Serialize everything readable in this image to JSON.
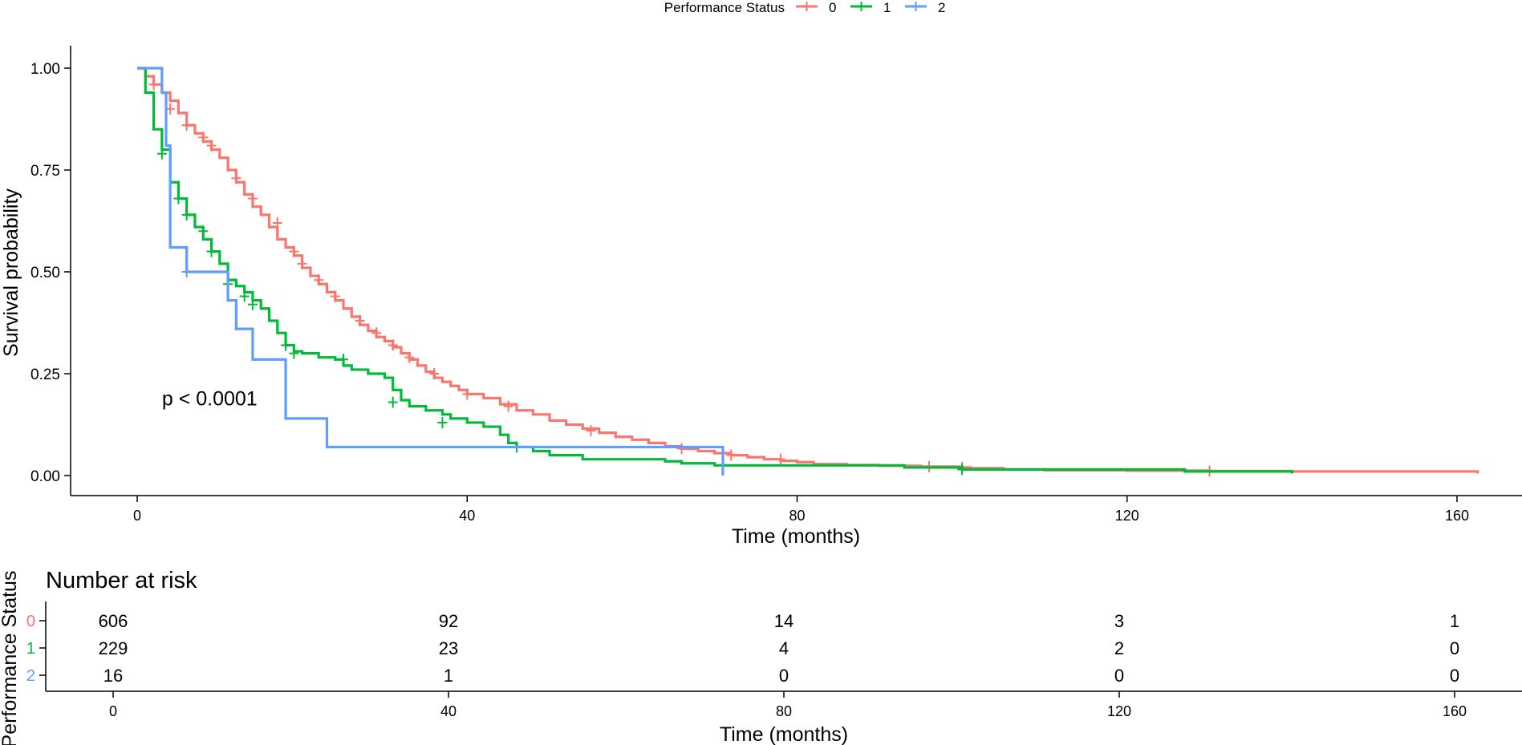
{
  "chart_data": {
    "type": "line",
    "subtype": "kaplan-meier",
    "legend": {
      "title": "Performance Status",
      "position": "top",
      "entries": [
        "0",
        "1",
        "2"
      ]
    },
    "xlabel": "Time (months)",
    "ylabel": "Survival probability",
    "xlim": [
      -8,
      168
    ],
    "ylim": [
      -0.05,
      1.05
    ],
    "xticks": [
      0,
      40,
      80,
      120,
      160
    ],
    "yticks": [
      0.0,
      0.25,
      0.5,
      0.75,
      1.0
    ],
    "ytick_labels": [
      "0.00",
      "0.25",
      "0.50",
      "0.75",
      "1.00"
    ],
    "grid": false,
    "annotation": "p < 0.0001",
    "annotation_at": [
      3,
      0.19
    ],
    "series": [
      {
        "name": "0",
        "color": "#F8766D",
        "steps": [
          [
            0,
            1.0
          ],
          [
            1,
            0.98
          ],
          [
            2,
            0.96
          ],
          [
            3,
            0.94
          ],
          [
            4,
            0.92
          ],
          [
            5,
            0.89
          ],
          [
            6,
            0.86
          ],
          [
            7,
            0.84
          ],
          [
            8,
            0.82
          ],
          [
            9,
            0.8
          ],
          [
            10,
            0.78
          ],
          [
            11,
            0.75
          ],
          [
            12,
            0.72
          ],
          [
            13,
            0.69
          ],
          [
            14,
            0.66
          ],
          [
            15,
            0.64
          ],
          [
            16,
            0.61
          ],
          [
            17,
            0.58
          ],
          [
            18,
            0.56
          ],
          [
            19,
            0.54
          ],
          [
            20,
            0.51
          ],
          [
            21,
            0.49
          ],
          [
            22,
            0.47
          ],
          [
            23,
            0.45
          ],
          [
            24,
            0.43
          ],
          [
            25,
            0.41
          ],
          [
            26,
            0.39
          ],
          [
            27,
            0.37
          ],
          [
            28,
            0.355
          ],
          [
            29,
            0.34
          ],
          [
            30,
            0.33
          ],
          [
            31,
            0.315
          ],
          [
            32,
            0.3
          ],
          [
            33,
            0.285
          ],
          [
            34,
            0.27
          ],
          [
            35,
            0.255
          ],
          [
            36,
            0.24
          ],
          [
            37,
            0.23
          ],
          [
            38,
            0.22
          ],
          [
            39,
            0.21
          ],
          [
            40,
            0.2
          ],
          [
            42,
            0.19
          ],
          [
            44,
            0.175
          ],
          [
            46,
            0.16
          ],
          [
            48,
            0.15
          ],
          [
            50,
            0.135
          ],
          [
            52,
            0.125
          ],
          [
            54,
            0.115
          ],
          [
            56,
            0.105
          ],
          [
            58,
            0.095
          ],
          [
            60,
            0.088
          ],
          [
            62,
            0.08
          ],
          [
            64,
            0.072
          ],
          [
            66,
            0.066
          ],
          [
            68,
            0.06
          ],
          [
            70,
            0.055
          ],
          [
            72,
            0.05
          ],
          [
            74,
            0.045
          ],
          [
            76,
            0.04
          ],
          [
            78,
            0.036
          ],
          [
            80,
            0.033
          ],
          [
            82,
            0.028
          ],
          [
            86,
            0.026
          ],
          [
            90,
            0.024
          ],
          [
            95,
            0.022
          ],
          [
            100,
            0.02
          ],
          [
            101,
            0.018
          ],
          [
            105,
            0.015
          ],
          [
            110,
            0.013
          ],
          [
            120,
            0.012
          ],
          [
            130,
            0.011
          ],
          [
            140,
            0.01
          ],
          [
            150,
            0.01
          ],
          [
            162,
            0.01
          ],
          [
            162.5,
            0.005
          ]
        ],
        "censor": [
          [
            2,
            0.96
          ],
          [
            4,
            0.9
          ],
          [
            6,
            0.86
          ],
          [
            8,
            0.83
          ],
          [
            9,
            0.81
          ],
          [
            12,
            0.73
          ],
          [
            14,
            0.68
          ],
          [
            17,
            0.62
          ],
          [
            19,
            0.55
          ],
          [
            20,
            0.52
          ],
          [
            22,
            0.48
          ],
          [
            24,
            0.44
          ],
          [
            27,
            0.38
          ],
          [
            29,
            0.35
          ],
          [
            31,
            0.32
          ],
          [
            33,
            0.29
          ],
          [
            36,
            0.25
          ],
          [
            40,
            0.2
          ],
          [
            45,
            0.17
          ],
          [
            55,
            0.11
          ],
          [
            66,
            0.066
          ],
          [
            72,
            0.05
          ],
          [
            78,
            0.04
          ],
          [
            96,
            0.022
          ],
          [
            100,
            0.02
          ],
          [
            130,
            0.011
          ]
        ]
      },
      {
        "name": "1",
        "color": "#00BA38",
        "steps": [
          [
            0,
            1.0
          ],
          [
            1,
            0.94
          ],
          [
            2,
            0.85
          ],
          [
            3,
            0.8
          ],
          [
            4,
            0.72
          ],
          [
            5,
            0.68
          ],
          [
            6,
            0.64
          ],
          [
            7,
            0.61
          ],
          [
            8,
            0.58
          ],
          [
            9,
            0.55
          ],
          [
            10,
            0.52
          ],
          [
            11,
            0.48
          ],
          [
            12,
            0.465
          ],
          [
            13,
            0.45
          ],
          [
            14,
            0.43
          ],
          [
            15,
            0.41
          ],
          [
            16,
            0.38
          ],
          [
            17,
            0.35
          ],
          [
            18,
            0.32
          ],
          [
            19,
            0.305
          ],
          [
            20,
            0.3
          ],
          [
            22,
            0.29
          ],
          [
            24,
            0.285
          ],
          [
            25,
            0.27
          ],
          [
            26,
            0.26
          ],
          [
            28,
            0.25
          ],
          [
            30,
            0.24
          ],
          [
            31,
            0.21
          ],
          [
            32,
            0.185
          ],
          [
            33,
            0.17
          ],
          [
            35,
            0.16
          ],
          [
            37,
            0.15
          ],
          [
            38,
            0.14
          ],
          [
            40,
            0.13
          ],
          [
            42,
            0.12
          ],
          [
            44,
            0.1
          ],
          [
            45,
            0.08
          ],
          [
            46,
            0.07
          ],
          [
            48,
            0.06
          ],
          [
            50,
            0.05
          ],
          [
            54,
            0.04
          ],
          [
            64,
            0.035
          ],
          [
            66,
            0.03
          ],
          [
            70,
            0.025
          ],
          [
            93,
            0.02
          ],
          [
            100,
            0.015
          ],
          [
            127,
            0.01
          ],
          [
            140,
            0.005
          ]
        ],
        "censor": [
          [
            3,
            0.79
          ],
          [
            5,
            0.68
          ],
          [
            6,
            0.64
          ],
          [
            8,
            0.6
          ],
          [
            9,
            0.55
          ],
          [
            11,
            0.47
          ],
          [
            13,
            0.44
          ],
          [
            14,
            0.42
          ],
          [
            18,
            0.32
          ],
          [
            19,
            0.3
          ],
          [
            25,
            0.285
          ],
          [
            31,
            0.18
          ],
          [
            37,
            0.13
          ],
          [
            46,
            0.07
          ],
          [
            100,
            0.015
          ]
        ]
      },
      {
        "name": "2",
        "color": "#619CFF",
        "steps": [
          [
            0,
            1.0
          ],
          [
            2,
            1.0
          ],
          [
            3,
            0.94
          ],
          [
            3.5,
            0.81
          ],
          [
            4,
            0.56
          ],
          [
            6,
            0.5
          ],
          [
            11,
            0.43
          ],
          [
            12,
            0.36
          ],
          [
            14,
            0.285
          ],
          [
            18,
            0.14
          ],
          [
            23,
            0.07
          ],
          [
            71,
            0.07
          ],
          [
            71,
            0.0
          ]
        ],
        "censor": [
          [
            6,
            0.5
          ]
        ]
      }
    ],
    "risk_table": {
      "title": "Number at risk",
      "ylabel": "Performance Status",
      "xlabel": "Time (months)",
      "times": [
        0,
        40,
        80,
        120,
        160
      ],
      "rows": [
        {
          "name": "0",
          "color": "#F8766D",
          "values": [
            "606",
            "92",
            "14",
            "3",
            "1"
          ]
        },
        {
          "name": "1",
          "color": "#00BA38",
          "values": [
            "229",
            "23",
            "4",
            "2",
            "0"
          ]
        },
        {
          "name": "2",
          "color": "#619CFF",
          "values": [
            "16",
            "1",
            "0",
            "0",
            "0"
          ]
        }
      ]
    }
  }
}
